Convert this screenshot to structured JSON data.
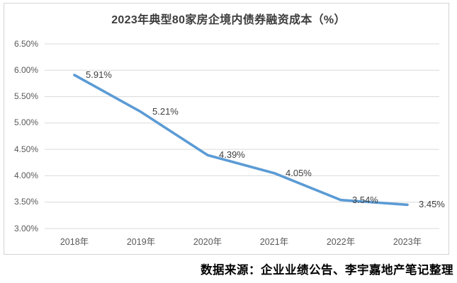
{
  "source_note": "数据来源：企业业绩公告、李宇嘉地产笔记整理",
  "colors": {
    "line": "#5B9BD5",
    "gridline": "#D9D9D9",
    "axis_text": "#595959",
    "data_label_text": "#404040",
    "title_text": "#3D3D3D",
    "frame_border": "#D4D4D4",
    "background": "#FFFFFF"
  },
  "chart_data": {
    "type": "line",
    "title": "2023年典型80家房企境内债券融资成本（%）",
    "categories": [
      "2018年",
      "2019年",
      "2020年",
      "2021年",
      "2022年",
      "2023年"
    ],
    "values": [
      5.91,
      5.21,
      4.39,
      4.05,
      3.54,
      3.45
    ],
    "data_labels": [
      "5.91%",
      "5.21%",
      "4.39%",
      "4.05%",
      "3.54%",
      "3.45%"
    ],
    "series_name": "境内债券融资成本",
    "xlabel": "",
    "ylabel": "",
    "ylim": [
      3.0,
      6.5
    ],
    "ytick_step": 0.5,
    "ytick_labels": [
      "3.00%",
      "3.50%",
      "4.00%",
      "4.50%",
      "5.00%",
      "5.50%",
      "6.00%",
      "6.50%"
    ],
    "grid": true,
    "legend": "none",
    "smooth": true
  }
}
